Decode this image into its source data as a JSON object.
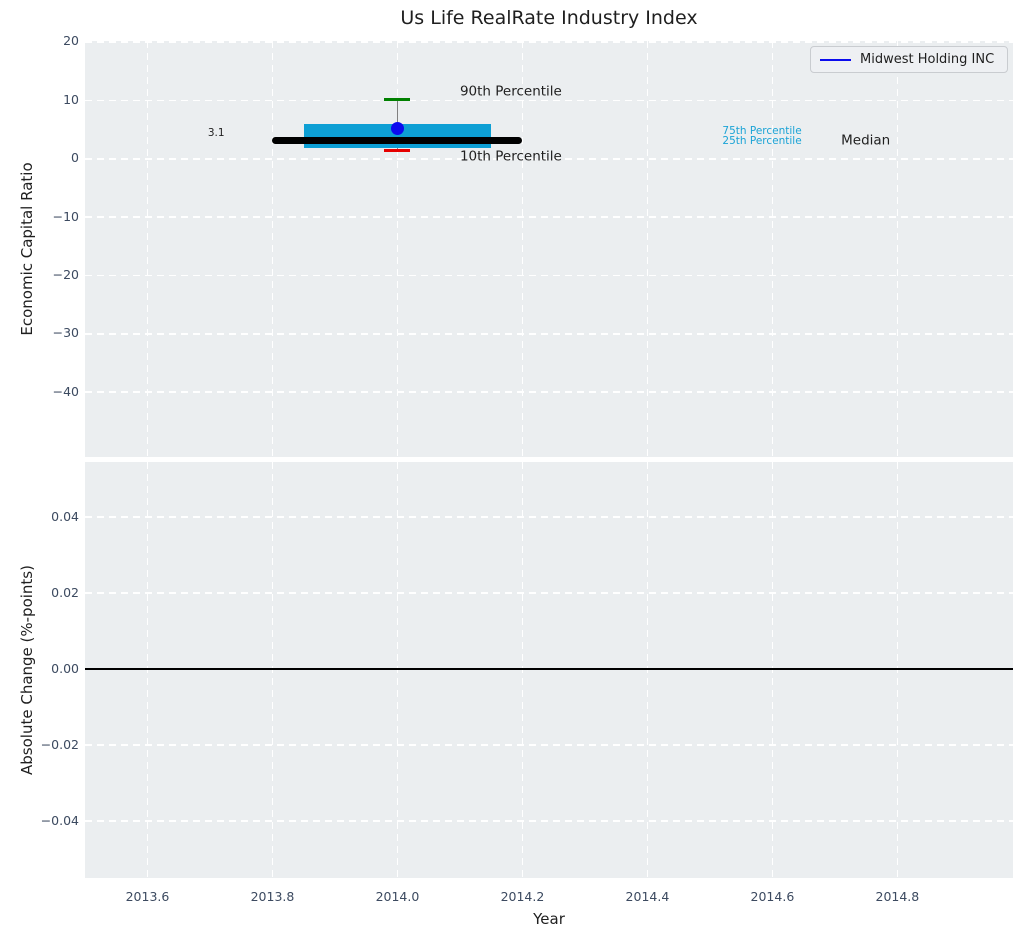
{
  "title": "Us Life RealRate Industry Index",
  "legend": {
    "label": "Midwest Holding INC",
    "line_color": "#0b0bee"
  },
  "colors": {
    "plot_bg": "#ebeef0",
    "grid": "#ffffff",
    "tick_label": "#3c4a60",
    "axis_label": "#1f1f1f",
    "box_fill": "#0d9fd4",
    "median_line": "#000000",
    "whisker": "#808080",
    "cap_90th": "#008000",
    "cap_10th": "#e60000",
    "company_dot": "#0b0bee",
    "percentile_text_cyan": "#1aa3d6",
    "zero_line": "#000000"
  },
  "chart_data": [
    {
      "type": "boxplot",
      "title": "Us Life RealRate Industry Index",
      "ylabel": "Economic Capital Ratio",
      "xlim": [
        2013.5,
        2014.985
      ],
      "ylim": [
        -51.1,
        20.17
      ],
      "grid": "dashed-white",
      "yticks": [
        20,
        10,
        0,
        -10,
        -20,
        -30,
        -40
      ],
      "ytick_labels": [
        "20",
        "10",
        "0",
        "−10",
        "−20",
        "−30",
        "−40"
      ],
      "xticks": [
        2013.6,
        2013.8,
        2014.0,
        2014.2,
        2014.4,
        2014.6,
        2014.8
      ],
      "box": {
        "x": 2014.0,
        "p90": 10.2,
        "p75": 5.9,
        "median": 3.1,
        "p25": 1.8,
        "p10": 1.35,
        "box_x_start": 2013.85,
        "box_x_end": 2014.15,
        "median_x_start": 2013.8,
        "median_x_end": 2014.2
      },
      "series": [
        {
          "name": "Midwest Holding INC",
          "x": 2014.0,
          "y": 5.1
        }
      ],
      "annotations": [
        {
          "slug": "90th-percentile",
          "text": "90th Percentile",
          "x": 2014.1,
          "y": 11.4,
          "color": "#1f1f1f",
          "size": 13.5,
          "anchor": "left"
        },
        {
          "slug": "10th-percentile",
          "text": "10th Percentile",
          "x": 2014.1,
          "y": 0.28,
          "color": "#1f1f1f",
          "size": 13.5,
          "anchor": "left"
        },
        {
          "slug": "75th-percentile",
          "text": "75th Percentile",
          "x": 2014.52,
          "y": 4.74,
          "color": "#1aa3d6",
          "size": 10.5,
          "anchor": "left"
        },
        {
          "slug": "25th-percentile",
          "text": "25th Percentile",
          "x": 2014.52,
          "y": 3.03,
          "color": "#1aa3d6",
          "size": 10.5,
          "anchor": "left"
        },
        {
          "slug": "median-label",
          "text": "Median",
          "x": 2014.71,
          "y": 3.1,
          "color": "#1f1f1f",
          "size": 13.5,
          "anchor": "left"
        },
        {
          "slug": "median-value",
          "text": "3.1",
          "x": 2013.71,
          "y": 4.4,
          "color": "#1f1f1f",
          "size": 10.5,
          "anchor": "center"
        }
      ]
    },
    {
      "type": "line",
      "ylabel": "Absolute Change (%-points)",
      "xlabel": "Year",
      "xlim": [
        2013.5,
        2014.985
      ],
      "ylim": [
        -0.055,
        0.0545
      ],
      "grid": "dashed-white",
      "yticks": [
        0.04,
        0.02,
        0.0,
        -0.02,
        -0.04
      ],
      "ytick_labels": [
        "0.04",
        "0.02",
        "0.00",
        "−0.02",
        "−0.04"
      ],
      "xticks": [
        2013.6,
        2013.8,
        2014.0,
        2014.2,
        2014.4,
        2014.6,
        2014.8
      ],
      "xtick_labels": [
        "2013.6",
        "2013.8",
        "2014.0",
        "2014.2",
        "2014.4",
        "2014.6",
        "2014.8"
      ],
      "zero_line": 0.0,
      "series": []
    }
  ]
}
